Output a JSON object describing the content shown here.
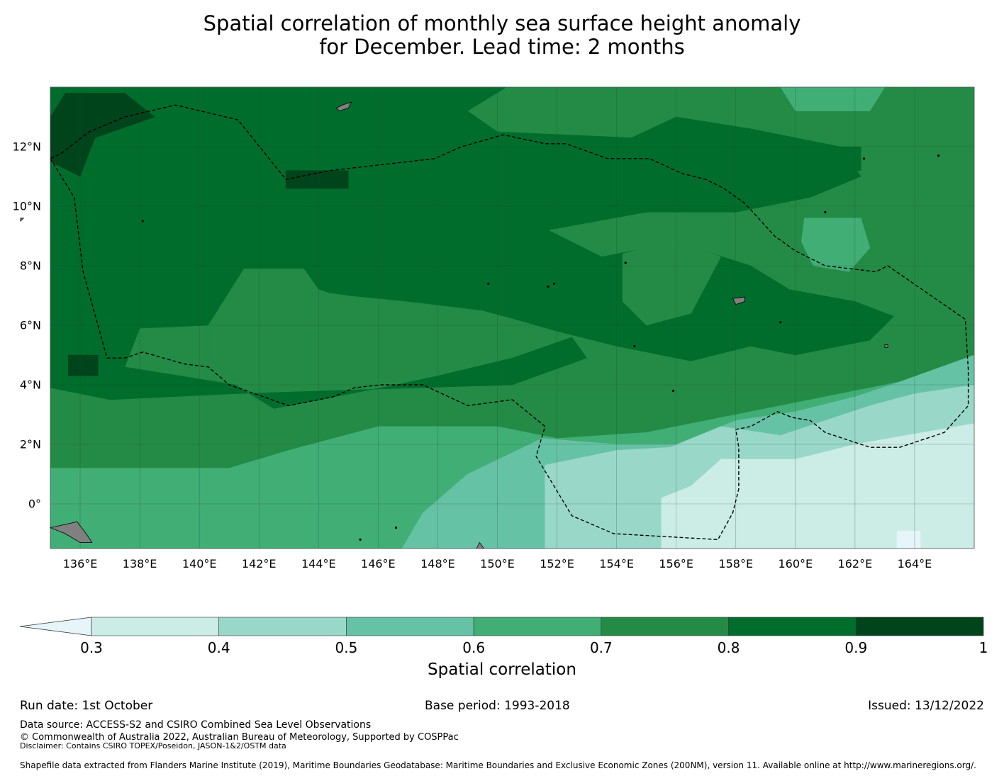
{
  "title": {
    "line1": "Spatial correlation of monthly sea surface height anomaly",
    "line2": "for December. Lead time: 2 months"
  },
  "map": {
    "extent": {
      "lon_min": 135,
      "lon_max": 166,
      "lat_min": -1.5,
      "lat_max": 14
    },
    "lon_ticks": [
      136,
      138,
      140,
      142,
      144,
      146,
      148,
      150,
      152,
      154,
      156,
      158,
      160,
      162,
      164
    ],
    "lon_labels": [
      "136°E",
      "138°E",
      "140°E",
      "142°E",
      "144°E",
      "146°E",
      "148°E",
      "150°E",
      "152°E",
      "154°E",
      "156°E",
      "158°E",
      "160°E",
      "162°E",
      "164°E"
    ],
    "lat_ticks": [
      12,
      10,
      8,
      6,
      4,
      2,
      0
    ],
    "lat_labels": [
      "12°N",
      "10°N",
      "8°N",
      "6°N",
      "4°N",
      "2°N",
      "0°"
    ],
    "land_color": "#808080",
    "boundary_label": "Exclusive Economic Zone boundary (dashed)"
  },
  "colorbar": {
    "label": "Spatial correlation",
    "bounds": [
      0.3,
      0.4,
      0.5,
      0.6,
      0.7,
      0.8,
      0.9,
      1
    ],
    "tick_labels": [
      "0.3",
      "0.4",
      "0.5",
      "0.6",
      "0.7",
      "0.8",
      "0.9",
      "1"
    ],
    "colors": [
      "#ccece6",
      "#99d8c9",
      "#66c2a4",
      "#41ae76",
      "#238b45",
      "#006d2c",
      "#00441b"
    ],
    "under_color": "#e5f5f9",
    "extend": "min"
  },
  "footer": {
    "run_date": "Run date: 1st October",
    "base_period": "Base period: 1993-2018",
    "issued": "Issued: 13/12/2022",
    "data_source": "Data source: ACCESS-S2 and CSIRO Combined Sea Level Observations",
    "copyright": "© Commonwealth of Australia 2022, Australian Bureau of Meteorology, Supported by COSPPac",
    "disclaimer": "Disclaimer: Contains CSIRO TOPEX/Poseidon, JASON-1&2/OSTM data",
    "shapefile": "Shapefile data extracted from Flanders Marine Institute (2019), Maritime Boundaries Geodatabase: Maritime Boundaries and Exclusive Economic Zones (200NM), version 11. Available online at http://www.marineregions.org/."
  }
}
